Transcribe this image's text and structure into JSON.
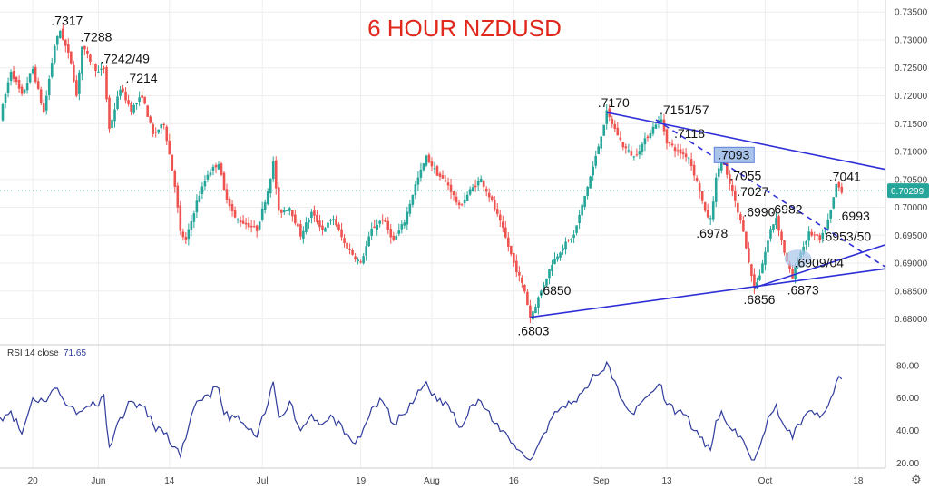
{
  "chart_data": {
    "type": "candlestick",
    "title": "6 HOUR NZDUSD",
    "colors": {
      "up": "#26a69a",
      "down": "#ef5350",
      "trend": "#2f2fd8",
      "rsi": "#2f3b9c",
      "title": "#e0281d",
      "zone": "#a9c4ea",
      "grid": "#eeeeee"
    },
    "price_axis": {
      "ylim": [
        0.677,
        0.7365
      ],
      "ticks": [
        "0.73500",
        "0.73000",
        "0.72500",
        "0.72000",
        "0.71500",
        "0.71000",
        "0.70500",
        "0.70000",
        "0.69500",
        "0.69000",
        "0.68500",
        "0.68000"
      ],
      "tick_values": [
        0.735,
        0.73,
        0.725,
        0.72,
        0.715,
        0.71,
        0.705,
        0.7,
        0.695,
        0.69,
        0.685,
        0.68
      ]
    },
    "last_price": {
      "label": "0.70299",
      "value": 0.70299
    },
    "time_axis": {
      "ticks": [
        {
          "label": "20",
          "day": 20
        },
        {
          "label": "Jun",
          "day": 32
        },
        {
          "label": "14",
          "day": 45
        },
        {
          "label": "Jul",
          "day": 62
        },
        {
          "label": "19",
          "day": 80
        },
        {
          "label": "Aug",
          "day": 93
        },
        {
          "label": "16",
          "day": 108
        },
        {
          "label": "Sep",
          "day": 124
        },
        {
          "label": "13",
          "day": 136
        },
        {
          "label": "Oct",
          "day": 154
        },
        {
          "label": "18",
          "day": 171
        }
      ],
      "xlim": [
        14,
        176
      ]
    },
    "price_path": [
      [
        14,
        0.716
      ],
      [
        16,
        0.7245
      ],
      [
        18,
        0.72
      ],
      [
        20,
        0.7248
      ],
      [
        22,
        0.717
      ],
      [
        24,
        0.729
      ],
      [
        25,
        0.7317
      ],
      [
        27,
        0.726
      ],
      [
        28,
        0.72
      ],
      [
        29,
        0.7288
      ],
      [
        31,
        0.7255
      ],
      [
        32,
        0.7242
      ],
      [
        33,
        0.7249
      ],
      [
        34,
        0.714
      ],
      [
        36,
        0.7214
      ],
      [
        38,
        0.7175
      ],
      [
        40,
        0.72
      ],
      [
        42,
        0.713
      ],
      [
        44,
        0.715
      ],
      [
        46,
        0.704
      ],
      [
        47,
        0.6955
      ],
      [
        48,
        0.694
      ],
      [
        50,
        0.701
      ],
      [
        52,
        0.706
      ],
      [
        54,
        0.708
      ],
      [
        55,
        0.703
      ],
      [
        57,
        0.698
      ],
      [
        59,
        0.697
      ],
      [
        61,
        0.696
      ],
      [
        63,
        0.703
      ],
      [
        64,
        0.708
      ],
      [
        65,
        0.699
      ],
      [
        67,
        0.7
      ],
      [
        69,
        0.695
      ],
      [
        71,
        0.699
      ],
      [
        73,
        0.696
      ],
      [
        75,
        0.698
      ],
      [
        77,
        0.6935
      ],
      [
        79,
        0.691
      ],
      [
        80,
        0.69
      ],
      [
        82,
        0.696
      ],
      [
        84,
        0.698
      ],
      [
        86,
        0.694
      ],
      [
        88,
        0.6975
      ],
      [
        90,
        0.704
      ],
      [
        92,
        0.709
      ],
      [
        94,
        0.706
      ],
      [
        96,
        0.704
      ],
      [
        98,
        0.7
      ],
      [
        100,
        0.703
      ],
      [
        102,
        0.705
      ],
      [
        104,
        0.701
      ],
      [
        106,
        0.696
      ],
      [
        108,
        0.69
      ],
      [
        110,
        0.685
      ],
      [
        111,
        0.6803
      ],
      [
        112,
        0.6825
      ],
      [
        113,
        0.685
      ],
      [
        115,
        0.69
      ],
      [
        117,
        0.693
      ],
      [
        119,
        0.695
      ],
      [
        121,
        0.702
      ],
      [
        123,
        0.709
      ],
      [
        124,
        0.713
      ],
      [
        125,
        0.717
      ],
      [
        126,
        0.715
      ],
      [
        128,
        0.711
      ],
      [
        130,
        0.709
      ],
      [
        132,
        0.712
      ],
      [
        134,
        0.7151
      ],
      [
        135,
        0.7157
      ],
      [
        136,
        0.7118
      ],
      [
        138,
        0.71
      ],
      [
        140,
        0.709
      ],
      [
        141,
        0.706
      ],
      [
        142,
        0.703
      ],
      [
        143,
        0.699
      ],
      [
        144,
        0.6978
      ],
      [
        145,
        0.705
      ],
      [
        146,
        0.7093
      ],
      [
        147,
        0.7055
      ],
      [
        148,
        0.7027
      ],
      [
        149,
        0.699
      ],
      [
        150,
        0.696
      ],
      [
        151,
        0.69
      ],
      [
        152,
        0.6856
      ],
      [
        153,
        0.688
      ],
      [
        154,
        0.692
      ],
      [
        155,
        0.696
      ],
      [
        156,
        0.6982
      ],
      [
        157,
        0.694
      ],
      [
        158,
        0.69
      ],
      [
        159,
        0.6873
      ],
      [
        160,
        0.6909
      ],
      [
        161,
        0.693
      ],
      [
        162,
        0.6953
      ],
      [
        163,
        0.695
      ],
      [
        164,
        0.694
      ],
      [
        165,
        0.696
      ],
      [
        166,
        0.6993
      ],
      [
        167,
        0.7041
      ],
      [
        168,
        0.703
      ]
    ],
    "trendlines": [
      {
        "from": [
          111,
          0.6803
        ],
        "to": [
          176,
          0.689
        ],
        "dash": false
      },
      {
        "from": [
          125,
          0.717
        ],
        "to": [
          176,
          0.7068
        ],
        "dash": false
      },
      {
        "from": [
          152,
          0.6856
        ],
        "to": [
          176,
          0.6933
        ],
        "dash": false
      },
      {
        "from": [
          134,
          0.7157
        ],
        "to": [
          176,
          0.6893
        ],
        "dash": true
      }
    ],
    "annotations": [
      {
        "text": ".7317",
        "day": 25,
        "price": 0.7317,
        "dx": -10,
        "dy": -6
      },
      {
        "text": ".7288",
        "day": 29,
        "price": 0.7288,
        "dx": -2,
        "dy": -6
      },
      {
        "text": ".7242/49",
        "day": 33,
        "price": 0.7249,
        "dx": -4,
        "dy": -6
      },
      {
        "text": ".7214",
        "day": 36,
        "price": 0.7214,
        "dx": 6,
        "dy": -6
      },
      {
        "text": ".7170",
        "day": 125,
        "price": 0.717,
        "dx": -10,
        "dy": -6
      },
      {
        "text": ".7151/57",
        "day": 135,
        "price": 0.7157,
        "dx": -2,
        "dy": -6
      },
      {
        "text": ".7118",
        "day": 136,
        "price": 0.7118,
        "dx": 8,
        "dy": -4
      },
      {
        "text": ".7093",
        "day": 146,
        "price": 0.7093,
        "dx": -4,
        "dy": 4,
        "boxed": true
      },
      {
        "text": ".7055",
        "day": 147,
        "price": 0.7055,
        "dx": 3,
        "dy": 4
      },
      {
        "text": ".7027",
        "day": 148,
        "price": 0.7027,
        "dx": 5,
        "dy": 4
      },
      {
        "text": ".6990",
        "day": 149,
        "price": 0.699,
        "dx": 6,
        "dy": 4
      },
      {
        "text": ".6978",
        "day": 144,
        "price": 0.6978,
        "dx": -16,
        "dy": 20
      },
      {
        "text": ".6982",
        "day": 156,
        "price": 0.6982,
        "dx": -6,
        "dy": -4
      },
      {
        "text": ".7041",
        "day": 167,
        "price": 0.7041,
        "dx": -8,
        "dy": -4
      },
      {
        "text": ".6993",
        "day": 166,
        "price": 0.6993,
        "dx": 8,
        "dy": 10
      },
      {
        "text": ".6953/50",
        "day": 162,
        "price": 0.6953,
        "dx": 14,
        "dy": 8
      },
      {
        "text": ".6909/04",
        "day": 160,
        "price": 0.6909,
        "dx": -4,
        "dy": 10
      },
      {
        "text": ".6873",
        "day": 159,
        "price": 0.6873,
        "dx": -6,
        "dy": 18
      },
      {
        "text": ".6856",
        "day": 152,
        "price": 0.6856,
        "dx": -12,
        "dy": 18
      },
      {
        "text": ".6850",
        "day": 113,
        "price": 0.685,
        "dx": -2,
        "dy": 4
      },
      {
        "text": ".6803",
        "day": 111,
        "price": 0.6803,
        "dx": -14,
        "dy": 20
      }
    ],
    "zone": {
      "day": 160,
      "price": 0.6908
    },
    "rsi": {
      "label": "RSI 14 close",
      "value": "71.65",
      "ylim": [
        17,
        86
      ],
      "ticks": [
        "80.00",
        "60.00",
        "40.00",
        "20.00"
      ],
      "tick_values": [
        80,
        60,
        40,
        20
      ],
      "path": [
        [
          14,
          48
        ],
        [
          16,
          52
        ],
        [
          18,
          38
        ],
        [
          20,
          60
        ],
        [
          22,
          58
        ],
        [
          24,
          66
        ],
        [
          25,
          62
        ],
        [
          27,
          55
        ],
        [
          28,
          50
        ],
        [
          29,
          52
        ],
        [
          31,
          58
        ],
        [
          32,
          55
        ],
        [
          33,
          62
        ],
        [
          34,
          30
        ],
        [
          36,
          48
        ],
        [
          38,
          58
        ],
        [
          40,
          55
        ],
        [
          42,
          44
        ],
        [
          44,
          38
        ],
        [
          46,
          30
        ],
        [
          47,
          24
        ],
        [
          48,
          35
        ],
        [
          50,
          58
        ],
        [
          52,
          62
        ],
        [
          54,
          66
        ],
        [
          55,
          50
        ],
        [
          57,
          48
        ],
        [
          59,
          42
        ],
        [
          61,
          36
        ],
        [
          63,
          56
        ],
        [
          64,
          70
        ],
        [
          65,
          48
        ],
        [
          67,
          58
        ],
        [
          69,
          40
        ],
        [
          71,
          50
        ],
        [
          73,
          44
        ],
        [
          75,
          48
        ],
        [
          77,
          38
        ],
        [
          79,
          32
        ],
        [
          80,
          36
        ],
        [
          82,
          54
        ],
        [
          84,
          58
        ],
        [
          86,
          44
        ],
        [
          88,
          50
        ],
        [
          90,
          60
        ],
        [
          92,
          70
        ],
        [
          94,
          58
        ],
        [
          96,
          56
        ],
        [
          98,
          42
        ],
        [
          100,
          55
        ],
        [
          102,
          58
        ],
        [
          104,
          46
        ],
        [
          106,
          40
        ],
        [
          108,
          32
        ],
        [
          110,
          24
        ],
        [
          111,
          22
        ],
        [
          112,
          28
        ],
        [
          113,
          35
        ],
        [
          115,
          48
        ],
        [
          117,
          55
        ],
        [
          119,
          58
        ],
        [
          121,
          66
        ],
        [
          123,
          74
        ],
        [
          124,
          76
        ],
        [
          125,
          82
        ],
        [
          126,
          72
        ],
        [
          128,
          58
        ],
        [
          130,
          50
        ],
        [
          132,
          60
        ],
        [
          134,
          66
        ],
        [
          135,
          68
        ],
        [
          136,
          56
        ],
        [
          138,
          52
        ],
        [
          140,
          48
        ],
        [
          141,
          40
        ],
        [
          142,
          36
        ],
        [
          143,
          30
        ],
        [
          144,
          28
        ],
        [
          145,
          46
        ],
        [
          146,
          52
        ],
        [
          147,
          44
        ],
        [
          148,
          40
        ],
        [
          149,
          36
        ],
        [
          150,
          34
        ],
        [
          151,
          26
        ],
        [
          152,
          22
        ],
        [
          153,
          30
        ],
        [
          154,
          40
        ],
        [
          155,
          50
        ],
        [
          156,
          56
        ],
        [
          157,
          46
        ],
        [
          158,
          40
        ],
        [
          159,
          35
        ],
        [
          160,
          44
        ],
        [
          161,
          48
        ],
        [
          162,
          52
        ],
        [
          163,
          50
        ],
        [
          164,
          48
        ],
        [
          165,
          52
        ],
        [
          166,
          60
        ],
        [
          167,
          70
        ],
        [
          168,
          71.65
        ]
      ]
    }
  }
}
